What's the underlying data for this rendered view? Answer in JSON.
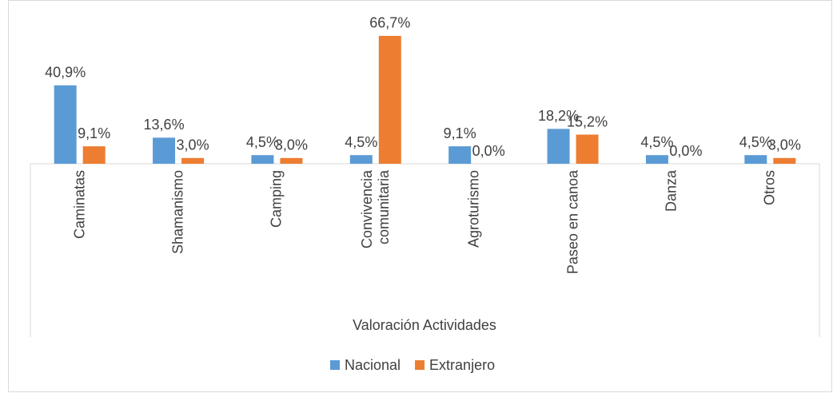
{
  "chart_data": {
    "type": "bar",
    "x_label": "Valoración Actividades",
    "categories": [
      "Caminatas",
      "Shamanismo",
      "Camping",
      "Convivencia comunitaria",
      "Agroturismo",
      "Paseo en canoa",
      "Danza",
      "Otros"
    ],
    "series": [
      {
        "name": "Nacional",
        "color": "#5b9bd5",
        "values": [
          40.9,
          13.6,
          4.5,
          4.5,
          9.1,
          18.2,
          4.5,
          4.5
        ],
        "value_labels": [
          "40,9%",
          "13,6%",
          "4,5%",
          "4,5%",
          "9,1%",
          "18,2%",
          "4,5%",
          "4,5%"
        ]
      },
      {
        "name": "Extranjero",
        "color": "#ed7d31",
        "values": [
          9.1,
          3.0,
          3.0,
          66.7,
          0.0,
          15.2,
          0.0,
          3.0
        ],
        "value_labels": [
          "9,1%",
          "3,0%",
          "3,0%",
          "66,7%",
          "0,0%",
          "15,2%",
          "0,0%",
          "3,0%"
        ]
      }
    ],
    "legend": "bottom"
  }
}
